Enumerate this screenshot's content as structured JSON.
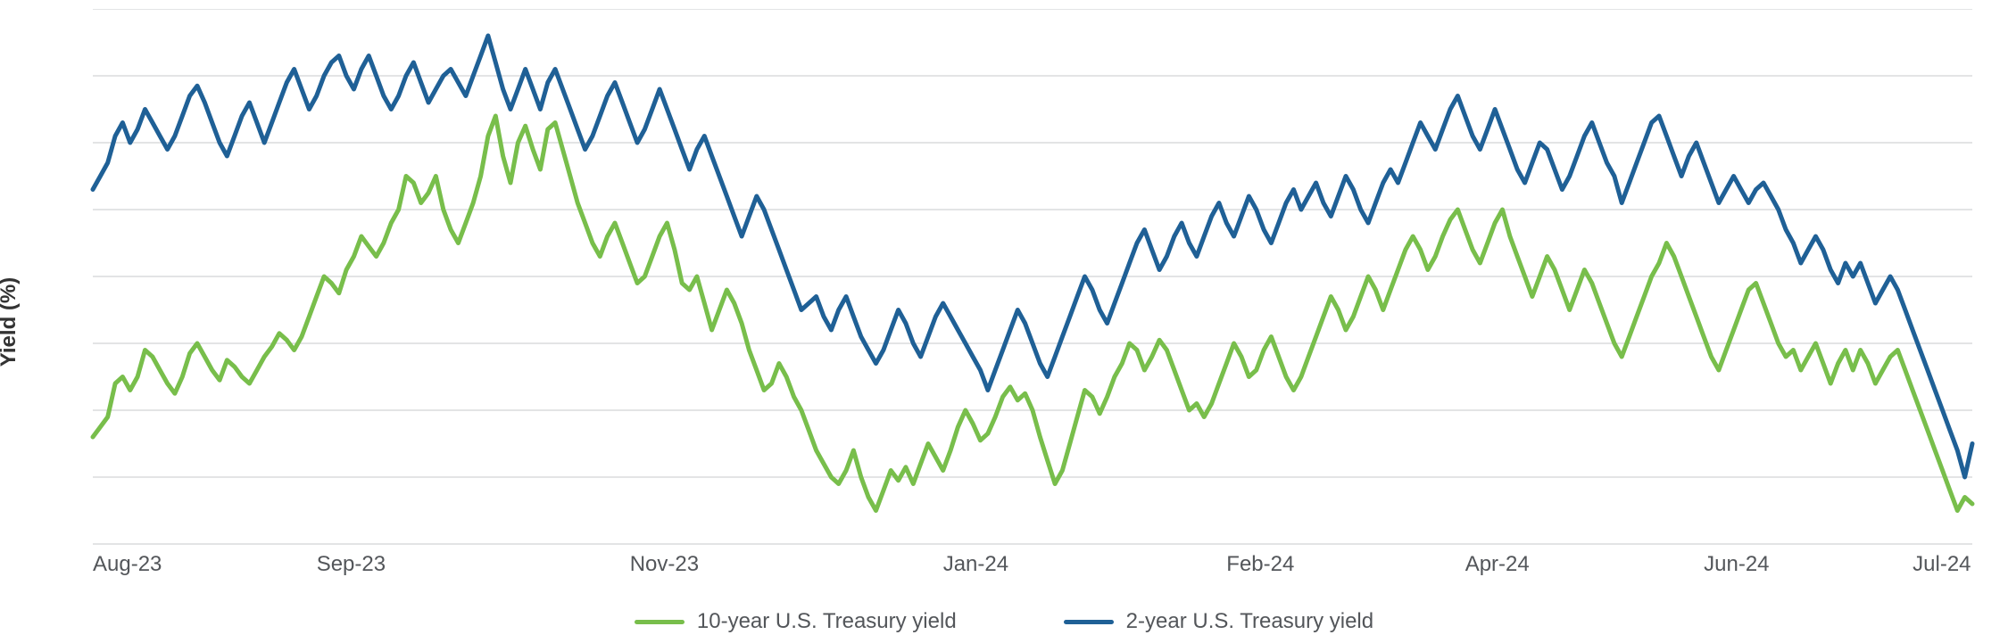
{
  "chart": {
    "type": "line",
    "background_color": "#ffffff",
    "grid_color": "#c7c9cb",
    "axis_text_color": "#53565a",
    "ylabel": "Yield (%)",
    "ylabel_fontsize": 24,
    "ylabel_fontweight": "700",
    "tick_fontsize": 24,
    "line_width": 5,
    "y": {
      "min": 3.7,
      "max": 5.3,
      "ticks": [
        3.7,
        3.9,
        4.1,
        4.3,
        4.5,
        4.7,
        4.9,
        5.1,
        5.3
      ]
    },
    "x": {
      "n": 253,
      "ticks": [
        {
          "i": 0,
          "label": "Aug-23"
        },
        {
          "i": 30,
          "label": "Sep-23"
        },
        {
          "i": 72,
          "label": "Nov-23"
        },
        {
          "i": 114,
          "label": "Jan-24"
        },
        {
          "i": 152,
          "label": "Feb-24"
        },
        {
          "i": 184,
          "label": "Apr-24"
        },
        {
          "i": 216,
          "label": "Jun-24"
        },
        {
          "i": 244,
          "label": "Jul-24"
        }
      ]
    },
    "legend": [
      {
        "label": "10-year U.S. Treasury yield",
        "color": "#78be4b"
      },
      {
        "label": "2-year U.S. Treasury yield",
        "color": "#1f6096"
      }
    ],
    "series": [
      {
        "name": "10-year U.S. Treasury yield",
        "color": "#78be4b",
        "values": [
          4.02,
          4.05,
          4.08,
          4.18,
          4.2,
          4.16,
          4.2,
          4.28,
          4.26,
          4.22,
          4.18,
          4.15,
          4.2,
          4.27,
          4.3,
          4.26,
          4.22,
          4.19,
          4.25,
          4.23,
          4.2,
          4.18,
          4.22,
          4.26,
          4.29,
          4.33,
          4.31,
          4.28,
          4.32,
          4.38,
          4.44,
          4.5,
          4.48,
          4.45,
          4.52,
          4.56,
          4.62,
          4.59,
          4.56,
          4.6,
          4.66,
          4.7,
          4.8,
          4.78,
          4.72,
          4.75,
          4.8,
          4.7,
          4.64,
          4.6,
          4.66,
          4.72,
          4.8,
          4.92,
          4.98,
          4.86,
          4.78,
          4.9,
          4.95,
          4.88,
          4.82,
          4.94,
          4.96,
          4.88,
          4.8,
          4.72,
          4.66,
          4.6,
          4.56,
          4.62,
          4.66,
          4.6,
          4.54,
          4.48,
          4.5,
          4.56,
          4.62,
          4.66,
          4.58,
          4.48,
          4.46,
          4.5,
          4.42,
          4.34,
          4.4,
          4.46,
          4.42,
          4.36,
          4.28,
          4.22,
          4.16,
          4.18,
          4.24,
          4.2,
          4.14,
          4.1,
          4.04,
          3.98,
          3.94,
          3.9,
          3.88,
          3.92,
          3.98,
          3.9,
          3.84,
          3.8,
          3.86,
          3.92,
          3.89,
          3.93,
          3.88,
          3.94,
          4.0,
          3.96,
          3.92,
          3.98,
          4.05,
          4.1,
          4.06,
          4.01,
          4.03,
          4.08,
          4.14,
          4.17,
          4.13,
          4.15,
          4.1,
          4.02,
          3.95,
          3.88,
          3.92,
          4.0,
          4.08,
          4.16,
          4.14,
          4.09,
          4.14,
          4.2,
          4.24,
          4.3,
          4.28,
          4.22,
          4.26,
          4.31,
          4.28,
          4.22,
          4.16,
          4.1,
          4.12,
          4.08,
          4.12,
          4.18,
          4.24,
          4.3,
          4.26,
          4.2,
          4.22,
          4.28,
          4.32,
          4.26,
          4.2,
          4.16,
          4.2,
          4.26,
          4.32,
          4.38,
          4.44,
          4.4,
          4.34,
          4.38,
          4.44,
          4.5,
          4.46,
          4.4,
          4.46,
          4.52,
          4.58,
          4.62,
          4.58,
          4.52,
          4.56,
          4.62,
          4.67,
          4.7,
          4.64,
          4.58,
          4.54,
          4.6,
          4.66,
          4.7,
          4.62,
          4.56,
          4.5,
          4.44,
          4.5,
          4.56,
          4.52,
          4.46,
          4.4,
          4.46,
          4.52,
          4.48,
          4.42,
          4.36,
          4.3,
          4.26,
          4.32,
          4.38,
          4.44,
          4.5,
          4.54,
          4.6,
          4.56,
          4.5,
          4.44,
          4.38,
          4.32,
          4.26,
          4.22,
          4.28,
          4.34,
          4.4,
          4.46,
          4.48,
          4.42,
          4.36,
          4.3,
          4.26,
          4.28,
          4.22,
          4.26,
          4.3,
          4.24,
          4.18,
          4.24,
          4.28,
          4.22,
          4.28,
          4.24,
          4.18,
          4.22,
          4.26,
          4.28,
          4.22,
          4.16,
          4.1,
          4.04,
          3.98,
          3.92,
          3.86,
          3.8,
          3.84,
          3.82
        ]
      },
      {
        "name": "2-year U.S. Treasury yield",
        "color": "#1f6096",
        "values": [
          4.76,
          4.8,
          4.84,
          4.92,
          4.96,
          4.9,
          4.94,
          5.0,
          4.96,
          4.92,
          4.88,
          4.92,
          4.98,
          5.04,
          5.07,
          5.02,
          4.96,
          4.9,
          4.86,
          4.92,
          4.98,
          5.02,
          4.96,
          4.9,
          4.96,
          5.02,
          5.08,
          5.12,
          5.06,
          5.0,
          5.04,
          5.1,
          5.14,
          5.16,
          5.1,
          5.06,
          5.12,
          5.16,
          5.1,
          5.04,
          5.0,
          5.04,
          5.1,
          5.14,
          5.08,
          5.02,
          5.06,
          5.1,
          5.12,
          5.08,
          5.04,
          5.1,
          5.16,
          5.22,
          5.14,
          5.06,
          5.0,
          5.06,
          5.12,
          5.06,
          5.0,
          5.08,
          5.12,
          5.06,
          5.0,
          4.94,
          4.88,
          4.92,
          4.98,
          5.04,
          5.08,
          5.02,
          4.96,
          4.9,
          4.94,
          5.0,
          5.06,
          5.0,
          4.94,
          4.88,
          4.82,
          4.88,
          4.92,
          4.86,
          4.8,
          4.74,
          4.68,
          4.62,
          4.68,
          4.74,
          4.7,
          4.64,
          4.58,
          4.52,
          4.46,
          4.4,
          4.42,
          4.44,
          4.38,
          4.34,
          4.4,
          4.44,
          4.38,
          4.32,
          4.28,
          4.24,
          4.28,
          4.34,
          4.4,
          4.36,
          4.3,
          4.26,
          4.32,
          4.38,
          4.42,
          4.38,
          4.34,
          4.3,
          4.26,
          4.22,
          4.16,
          4.22,
          4.28,
          4.34,
          4.4,
          4.36,
          4.3,
          4.24,
          4.2,
          4.26,
          4.32,
          4.38,
          4.44,
          4.5,
          4.46,
          4.4,
          4.36,
          4.42,
          4.48,
          4.54,
          4.6,
          4.64,
          4.58,
          4.52,
          4.56,
          4.62,
          4.66,
          4.6,
          4.56,
          4.62,
          4.68,
          4.72,
          4.66,
          4.62,
          4.68,
          4.74,
          4.7,
          4.64,
          4.6,
          4.66,
          4.72,
          4.76,
          4.7,
          4.74,
          4.78,
          4.72,
          4.68,
          4.74,
          4.8,
          4.76,
          4.7,
          4.66,
          4.72,
          4.78,
          4.82,
          4.78,
          4.84,
          4.9,
          4.96,
          4.92,
          4.88,
          4.94,
          5.0,
          5.04,
          4.98,
          4.92,
          4.88,
          4.94,
          5.0,
          4.94,
          4.88,
          4.82,
          4.78,
          4.84,
          4.9,
          4.88,
          4.82,
          4.76,
          4.8,
          4.86,
          4.92,
          4.96,
          4.9,
          4.84,
          4.8,
          4.72,
          4.78,
          4.84,
          4.9,
          4.96,
          4.98,
          4.92,
          4.86,
          4.8,
          4.86,
          4.9,
          4.84,
          4.78,
          4.72,
          4.76,
          4.8,
          4.76,
          4.72,
          4.76,
          4.78,
          4.74,
          4.7,
          4.64,
          4.6,
          4.54,
          4.58,
          4.62,
          4.58,
          4.52,
          4.48,
          4.54,
          4.5,
          4.54,
          4.48,
          4.42,
          4.46,
          4.5,
          4.46,
          4.4,
          4.34,
          4.28,
          4.22,
          4.16,
          4.1,
          4.04,
          3.98,
          3.9,
          4.0
        ]
      }
    ]
  }
}
